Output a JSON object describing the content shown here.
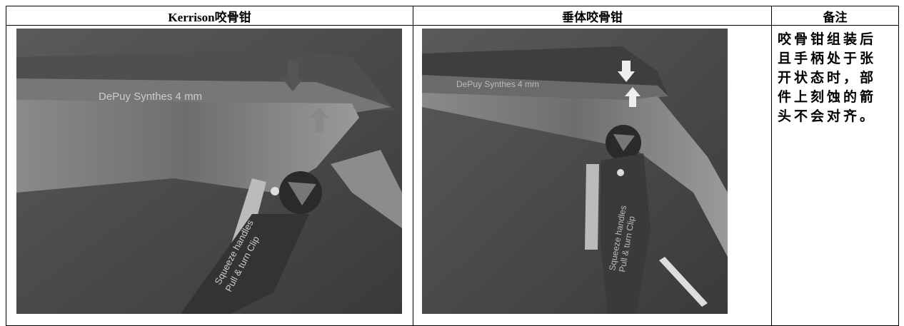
{
  "table": {
    "header": [
      "Kerrison咬骨钳",
      "垂体咬骨钳",
      "备注"
    ],
    "rows": [
      [
        {
          "image_text": [
            "DePuy Synthes  4 mm",
            "Squeeze handles",
            "Pull & turn Clip"
          ]
        },
        {
          "image_text": [
            "DePuy Synthes   4 mm",
            "Squeeze handles",
            "Pull & turn Clip"
          ]
        },
        "咬骨钳组装后且手柄处于张开状态时，部件上刻蚀的箭头不会对齐。"
      ]
    ]
  }
}
